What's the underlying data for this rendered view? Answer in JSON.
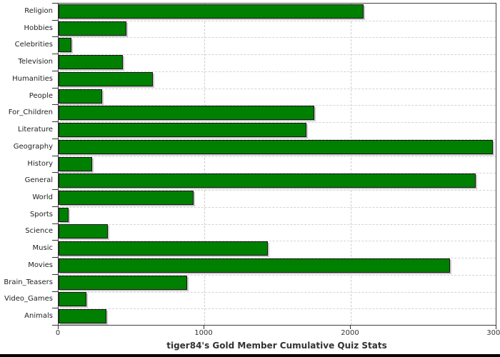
{
  "chart_data": {
    "type": "bar",
    "orientation": "horizontal",
    "title": "tiger84's Gold Member Cumulative Quiz Stats",
    "categories": [
      "Religion",
      "Hobbies",
      "Celebrities",
      "Television",
      "Humanities",
      "People",
      "For_Children",
      "Literature",
      "Geography",
      "History",
      "General",
      "World",
      "Sports",
      "Science",
      "Music",
      "Movies",
      "Brain_Teasers",
      "Video_Games",
      "Animals"
    ],
    "values": [
      2090,
      465,
      90,
      440,
      645,
      300,
      1750,
      1700,
      2975,
      230,
      2860,
      925,
      70,
      340,
      1435,
      2680,
      880,
      190,
      330
    ],
    "xlabel": "",
    "ylabel": "",
    "xlim": [
      0,
      3000
    ],
    "x_ticks": [
      0,
      1000,
      2000,
      3000
    ],
    "x_tick_labels": [
      "0",
      "1000",
      "2000",
      "3000"
    ],
    "grid": "dashed",
    "legend": "none",
    "colors": {
      "bar_fill": "#008000",
      "bar_border": "#151515",
      "bar_shadow": "#c8c8c8",
      "plot_border": "#404040",
      "grid_line": "#cccccc",
      "text": "#333333",
      "background": "#ffffff",
      "bottom_edge": "#000000"
    }
  }
}
